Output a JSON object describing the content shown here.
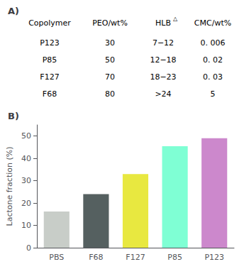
{
  "chart_data": [
    {
      "type": "table",
      "title": "A)",
      "columns": [
        "Copolymer",
        "PEO/wt%",
        "HLB",
        "CMC/wt%"
      ],
      "annotations": [
        "△"
      ],
      "rows": [
        [
          "P123",
          "30",
          "7−12",
          "0. 006"
        ],
        [
          "P85",
          "50",
          "12−18",
          "0. 02"
        ],
        [
          "F127",
          "70",
          "18−23",
          "0. 03"
        ],
        [
          "F68",
          "80",
          ">24",
          "5"
        ]
      ]
    },
    {
      "type": "bar",
      "title": "B)",
      "categories": [
        "PBS",
        "F68",
        "F127",
        "P85",
        "P123"
      ],
      "values": [
        16.2,
        24.0,
        33.0,
        45.5,
        49.0
      ],
      "colors": [
        "#c8cdc8",
        "#556060",
        "#e8e840",
        "#7fffd4",
        "#cc88cc"
      ],
      "ylabel": "Lactone fraction (%)",
      "ylim": [
        0,
        55
      ],
      "yticks": [
        0,
        10,
        20,
        30,
        40,
        50
      ],
      "grid": false
    }
  ]
}
